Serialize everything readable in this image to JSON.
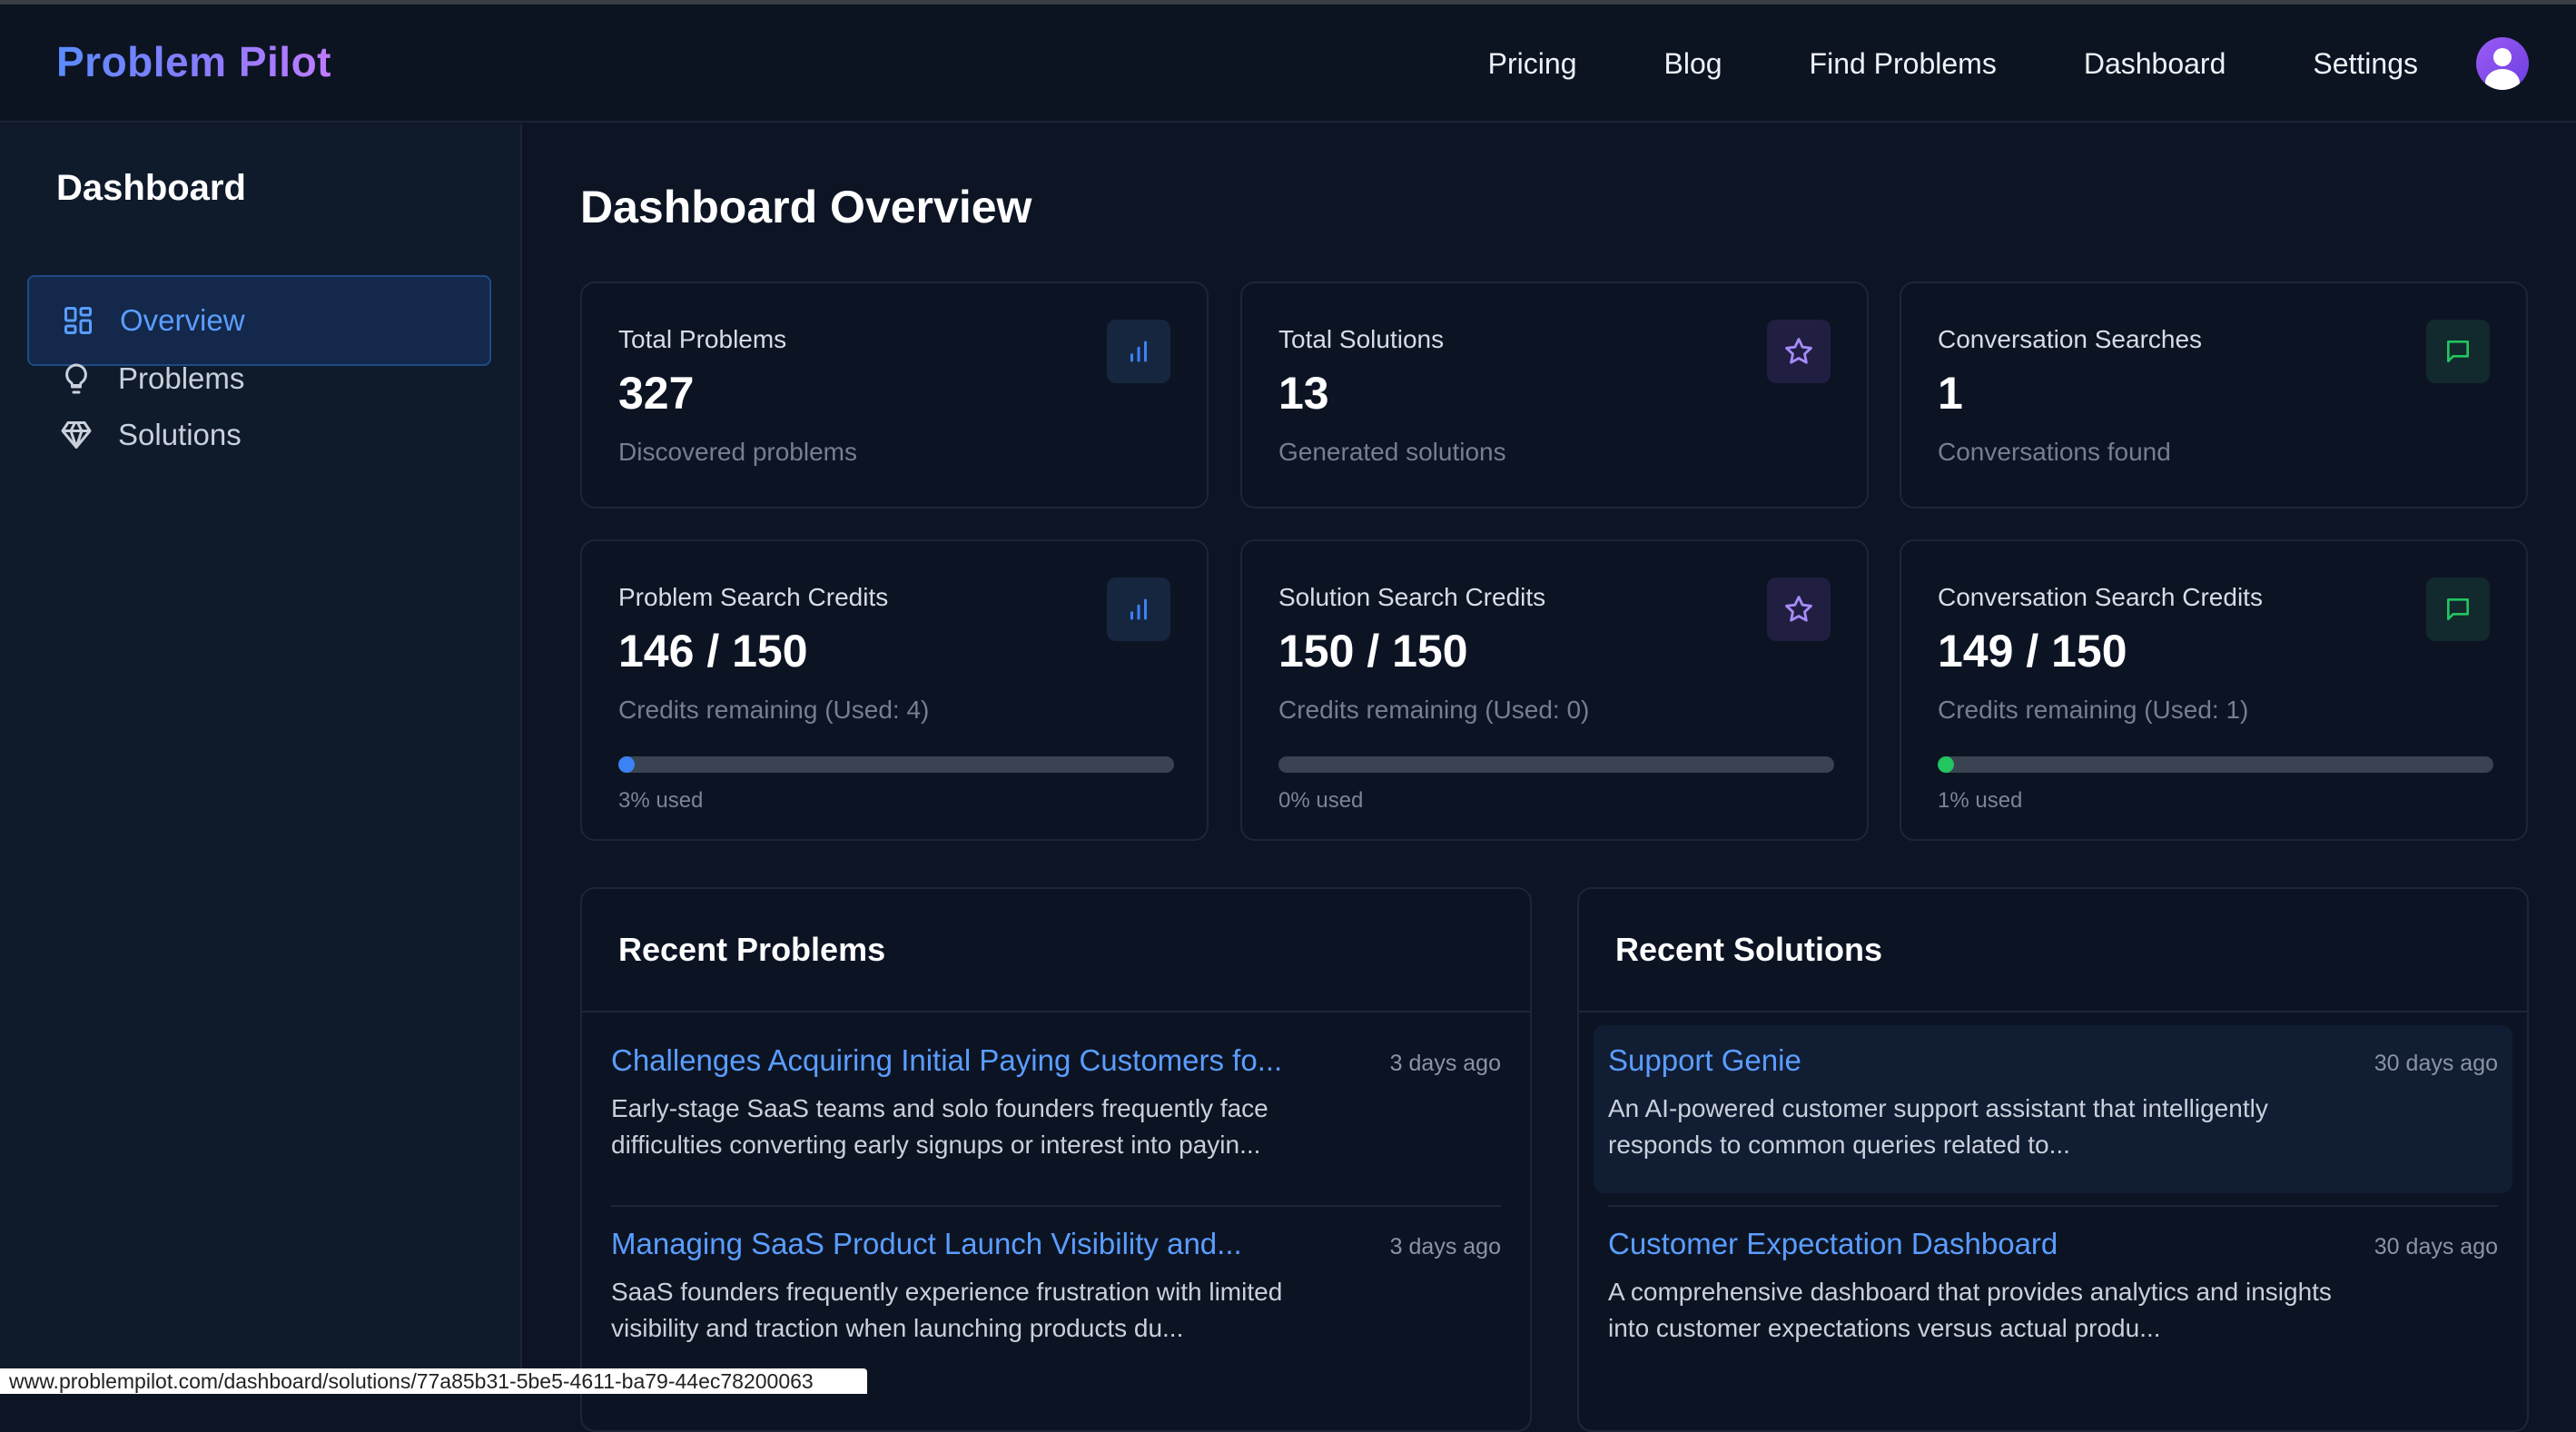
{
  "app": {
    "brand": "Problem Pilot"
  },
  "nav": {
    "links": [
      "Pricing",
      "Blog",
      "Find Problems",
      "Dashboard",
      "Settings"
    ],
    "avatar_icon": "user-avatar-icon"
  },
  "sidebar": {
    "title": "Dashboard",
    "items": [
      {
        "label": "Overview",
        "icon": "grid-icon",
        "active": true
      },
      {
        "label": "Problems",
        "icon": "lightbulb-icon",
        "active": false
      },
      {
        "label": "Solutions",
        "icon": "gem-icon",
        "active": false
      }
    ]
  },
  "main": {
    "title": "Dashboard Overview",
    "stats": [
      {
        "label": "Total Problems",
        "value": "327",
        "sub": "Discovered problems",
        "icon": "bar-chart-icon",
        "tone": "blue"
      },
      {
        "label": "Total Solutions",
        "value": "13",
        "sub": "Generated solutions",
        "icon": "star-icon",
        "tone": "purple"
      },
      {
        "label": "Conversation Searches",
        "value": "1",
        "sub": "Conversations found",
        "icon": "message-icon",
        "tone": "green"
      }
    ],
    "credits": [
      {
        "label": "Problem Search Credits",
        "value": "146 / 150",
        "sub": "Credits remaining (Used: 4)",
        "pct_text": "3% used",
        "used_fraction": 0.03,
        "color": "#3b82f6",
        "icon": "bar-chart-icon",
        "tone": "blue"
      },
      {
        "label": "Solution Search Credits",
        "value": "150 / 150",
        "sub": "Credits remaining (Used: 0)",
        "pct_text": "0% used",
        "used_fraction": 0.0,
        "color": "#8b5cf6",
        "icon": "star-icon",
        "tone": "purple"
      },
      {
        "label": "Conversation Search Credits",
        "value": "149 / 150",
        "sub": "Credits remaining (Used: 1)",
        "pct_text": "1% used",
        "used_fraction": 0.01,
        "color": "#22c55e",
        "icon": "message-icon",
        "tone": "green"
      }
    ],
    "recent_problems": {
      "title": "Recent Problems",
      "items": [
        {
          "title": "Challenges Acquiring Initial Paying Customers fo...",
          "time": "3 days ago",
          "desc": "Early-stage SaaS teams and solo founders frequently face difficulties converting early signups or interest into payin..."
        },
        {
          "title": "Managing SaaS Product Launch Visibility and...",
          "time": "3 days ago",
          "desc": "SaaS founders frequently experience frustration with limited visibility and traction when launching products du..."
        }
      ]
    },
    "recent_solutions": {
      "title": "Recent Solutions",
      "items": [
        {
          "title": "Support Genie",
          "time": "30 days ago",
          "desc": "An AI-powered customer support assistant that intelligently responds to common queries related to..."
        },
        {
          "title": "Customer Expectation Dashboard",
          "time": "30 days ago",
          "desc": "A comprehensive dashboard that provides analytics and insights into customer expectations versus actual produ..."
        }
      ]
    }
  },
  "statusbar": {
    "url": "www.problempilot.com/dashboard/solutions/77a85b31-5be5-4611-ba79-44ec78200063"
  },
  "colors": {
    "accent": "#5b9dff",
    "background": "#0d1524",
    "card": "#0c1424"
  }
}
